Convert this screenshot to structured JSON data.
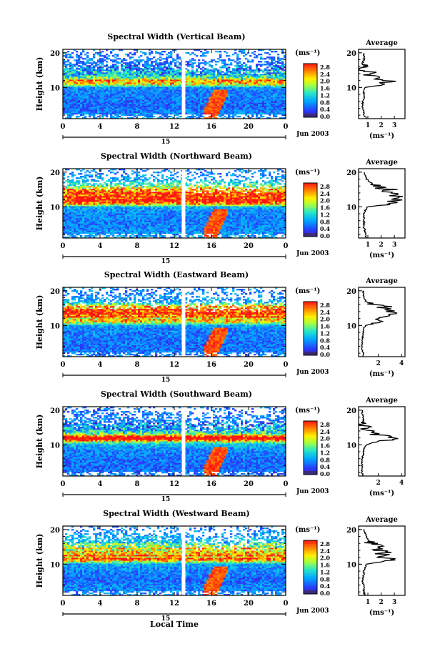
{
  "figure": {
    "xlabel": "Local Time",
    "date_label": "Jun 2003",
    "day_label": "15",
    "ylabel": "Height (km)",
    "colorbar_unit": "(ms⁻¹)",
    "colorbar_ticks": [
      "2.8",
      "2.4",
      "2.0",
      "1.6",
      "1.2",
      "0.8",
      "0.4",
      "0.0"
    ],
    "avg_title": "Average",
    "avg_xlabel": "(ms⁻¹)"
  },
  "chart_data": [
    {
      "type": "heatmap",
      "title": "Spectral Width (Vertical Beam)",
      "x_ticks": [
        "0",
        "4",
        "8",
        "12",
        "16",
        "20",
        "0"
      ],
      "xlim": [
        0,
        24
      ],
      "y_ticks": [
        "10",
        "20"
      ],
      "ylim": [
        1,
        21
      ],
      "colorbar_range": [
        0.0,
        3.0
      ],
      "gap_time": 13.0,
      "avg_profile": {
        "x_ticks": [
          "1",
          "2",
          "3"
        ],
        "xlim": [
          0.3,
          3.8
        ],
        "height": [
          1,
          2,
          3,
          4,
          5,
          6,
          7,
          8,
          9,
          10,
          10.5,
          11,
          11.5,
          12,
          12.5,
          13,
          13.5,
          14,
          14.5,
          15,
          15.5,
          16,
          17,
          18,
          19,
          20
        ],
        "value": [
          0.9,
          0.7,
          0.7,
          0.6,
          0.6,
          0.6,
          0.7,
          0.7,
          0.7,
          0.8,
          1.6,
          2.2,
          2.4,
          2.6,
          1.8,
          1.4,
          1.1,
          0.9,
          1.1,
          0.8,
          0.7,
          0.7,
          0.6,
          0.7,
          0.7,
          0.7
        ]
      }
    },
    {
      "type": "heatmap",
      "title": "Spectral Width (Northward Beam)",
      "x_ticks": [
        "0",
        "4",
        "8",
        "12",
        "16",
        "20",
        "0"
      ],
      "xlim": [
        0,
        24
      ],
      "y_ticks": [
        "10",
        "20"
      ],
      "ylim": [
        1,
        21
      ],
      "colorbar_range": [
        0.0,
        3.0
      ],
      "gap_time": 13.0,
      "avg_profile": {
        "x_ticks": [
          "1",
          "2",
          "3"
        ],
        "xlim": [
          0.3,
          3.8
        ],
        "height": [
          1,
          2,
          3,
          4,
          5,
          6,
          7,
          8,
          9,
          10,
          10.5,
          11,
          11.5,
          12,
          12.5,
          13,
          13.5,
          14,
          14.5,
          15,
          15.5,
          16,
          17,
          18,
          19,
          20
        ],
        "value": [
          0.9,
          0.8,
          0.8,
          0.7,
          0.7,
          0.7,
          0.7,
          0.7,
          0.8,
          1.0,
          2.0,
          2.6,
          3.0,
          3.2,
          2.8,
          3.1,
          2.6,
          3.2,
          2.4,
          2.7,
          2.0,
          1.6,
          1.2,
          0.9,
          0.8,
          0.7
        ]
      }
    },
    {
      "type": "heatmap",
      "title": "Spectral Width (Eastward Beam)",
      "x_ticks": [
        "0",
        "4",
        "8",
        "12",
        "16",
        "20",
        "0"
      ],
      "xlim": [
        0,
        24
      ],
      "y_ticks": [
        "10",
        "20"
      ],
      "ylim": [
        1,
        21
      ],
      "colorbar_range": [
        0.0,
        3.0
      ],
      "gap_time": 13.0,
      "avg_profile": {
        "x_ticks": [
          "2",
          "4"
        ],
        "xlim": [
          0.3,
          4.3
        ],
        "height": [
          1,
          2,
          3,
          4,
          5,
          6,
          7,
          8,
          9,
          10,
          10.5,
          11,
          11.5,
          12,
          12.5,
          13,
          13.5,
          14,
          14.5,
          15,
          15.5,
          16,
          17,
          18,
          19,
          20
        ],
        "value": [
          0.7,
          0.7,
          0.6,
          0.6,
          0.6,
          0.6,
          0.7,
          0.7,
          0.7,
          0.9,
          1.6,
          2.2,
          2.4,
          2.0,
          3.0,
          2.4,
          3.4,
          2.6,
          3.2,
          2.2,
          2.8,
          1.4,
          0.9,
          0.8,
          0.7,
          0.7
        ]
      }
    },
    {
      "type": "heatmap",
      "title": "Spectral Width (Southward Beam)",
      "x_ticks": [
        "0",
        "4",
        "8",
        "12",
        "16",
        "20",
        "0"
      ],
      "xlim": [
        0,
        24
      ],
      "y_ticks": [
        "10",
        "20"
      ],
      "ylim": [
        1,
        21
      ],
      "colorbar_range": [
        0.0,
        3.0
      ],
      "gap_time": 13.0,
      "avg_profile": {
        "x_ticks": [
          "2",
          "4"
        ],
        "xlim": [
          0.3,
          4.3
        ],
        "height": [
          1,
          2,
          3,
          4,
          5,
          6,
          7,
          8,
          9,
          10,
          10.5,
          11,
          11.5,
          12,
          12.5,
          13,
          13.5,
          14,
          14.5,
          15,
          15.5,
          16,
          17,
          18,
          19,
          20
        ],
        "value": [
          0.7,
          0.6,
          0.6,
          0.6,
          0.6,
          0.6,
          0.7,
          0.7,
          0.8,
          1.0,
          1.4,
          2.0,
          3.2,
          3.6,
          2.8,
          1.8,
          1.3,
          1.1,
          0.9,
          0.8,
          0.8,
          0.7,
          0.7,
          0.7,
          0.6,
          0.6
        ]
      }
    },
    {
      "type": "heatmap",
      "title": "Spectral Width (Westward Beam)",
      "x_ticks": [
        "0",
        "4",
        "8",
        "12",
        "16",
        "20",
        "0"
      ],
      "xlim": [
        0,
        24
      ],
      "y_ticks": [
        "10",
        "20"
      ],
      "ylim": [
        1,
        21
      ],
      "colorbar_range": [
        0.0,
        3.0
      ],
      "gap_time": 13.0,
      "avg_profile": {
        "x_ticks": [
          "1",
          "2",
          "3"
        ],
        "xlim": [
          0.3,
          3.8
        ],
        "height": [
          1,
          2,
          3,
          4,
          5,
          6,
          7,
          8,
          9,
          10,
          10.5,
          11,
          11.5,
          12,
          12.5,
          13,
          13.5,
          14,
          14.5,
          15,
          15.5,
          16,
          17,
          18,
          19,
          20
        ],
        "value": [
          0.8,
          0.7,
          0.7,
          0.7,
          0.6,
          0.6,
          0.7,
          0.7,
          0.8,
          0.9,
          1.6,
          2.4,
          3.0,
          2.2,
          2.8,
          2.0,
          2.6,
          1.6,
          2.4,
          1.5,
          1.8,
          1.2,
          1.0,
          0.9,
          0.8,
          0.7
        ]
      }
    }
  ]
}
